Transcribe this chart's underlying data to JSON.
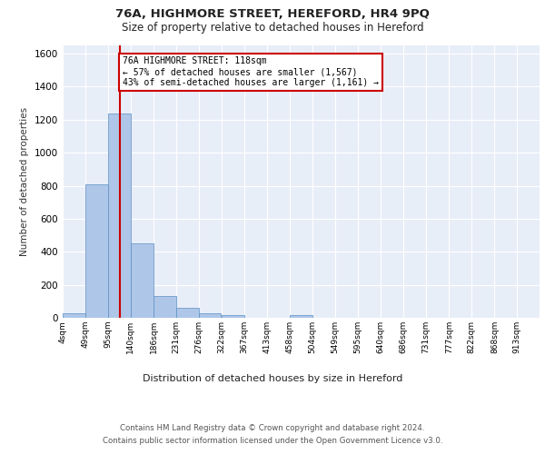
{
  "title1": "76A, HIGHMORE STREET, HEREFORD, HR4 9PQ",
  "title2": "Size of property relative to detached houses in Hereford",
  "xlabel": "Distribution of detached houses by size in Hereford",
  "ylabel": "Number of detached properties",
  "bins": [
    4,
    49,
    95,
    140,
    186,
    231,
    276,
    322,
    367,
    413,
    458,
    504,
    549,
    595,
    640,
    686,
    731,
    777,
    822,
    868,
    913
  ],
  "bar_heights": [
    25,
    810,
    1240,
    450,
    130,
    62,
    27,
    18,
    0,
    0,
    15,
    0,
    0,
    0,
    0,
    0,
    0,
    0,
    0,
    0
  ],
  "bar_color": "#aec6e8",
  "bar_edgecolor": "#5a8fc3",
  "bar_linewidth": 0.5,
  "property_size": 118,
  "red_line_color": "#cc0000",
  "annotation_text": "76A HIGHMORE STREET: 118sqm\n← 57% of detached houses are smaller (1,567)\n43% of semi-detached houses are larger (1,161) →",
  "annotation_box_edgecolor": "#cc0000",
  "annotation_box_facecolor": "#ffffff",
  "ylim": [
    0,
    1650
  ],
  "yticks": [
    0,
    200,
    400,
    600,
    800,
    1000,
    1200,
    1400,
    1600
  ],
  "footer_line1": "Contains HM Land Registry data © Crown copyright and database right 2024.",
  "footer_line2": "Contains public sector information licensed under the Open Government Licence v3.0.",
  "bg_color": "#e8eef8",
  "grid_color": "#ffffff",
  "fig_bg_color": "#ffffff"
}
